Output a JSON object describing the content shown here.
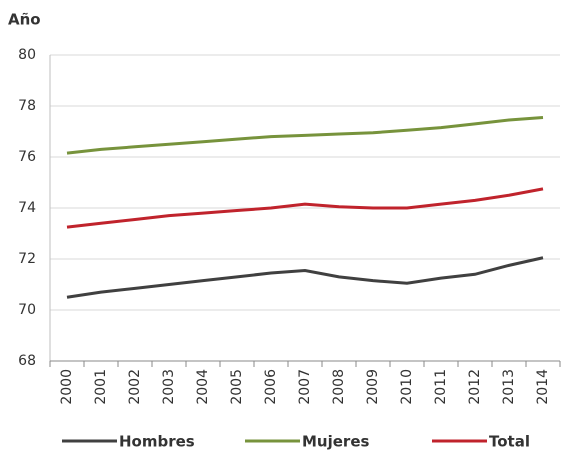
{
  "chart_data": {
    "type": "line",
    "y_label": "Año",
    "categories": [
      "2000",
      "2001",
      "2002",
      "2003",
      "2004",
      "2005",
      "2006",
      "2007",
      "2008",
      "2009",
      "2010",
      "2011",
      "2012",
      "2013",
      "2014"
    ],
    "series": [
      {
        "name": "Hombres",
        "color": "#404040",
        "values": [
          70.5,
          70.7,
          70.85,
          71.0,
          71.15,
          71.3,
          71.45,
          71.55,
          71.3,
          71.15,
          71.05,
          71.25,
          71.4,
          71.75,
          72.05
        ]
      },
      {
        "name": "Mujeres",
        "color": "#77933c",
        "values": [
          76.15,
          76.3,
          76.4,
          76.5,
          76.6,
          76.7,
          76.8,
          76.85,
          76.9,
          76.95,
          77.05,
          77.15,
          77.3,
          77.45,
          77.55
        ]
      },
      {
        "name": "Total",
        "color": "#c0232c",
        "values": [
          73.25,
          73.4,
          73.55,
          73.7,
          73.8,
          73.9,
          74.0,
          74.15,
          74.05,
          74.0,
          74.0,
          74.15,
          74.3,
          74.5,
          74.75
        ]
      }
    ],
    "ylim": [
      68,
      80
    ],
    "yticks": [
      68,
      70,
      72,
      74,
      76,
      78,
      80
    ],
    "grid": true,
    "legend": "bottom"
  }
}
